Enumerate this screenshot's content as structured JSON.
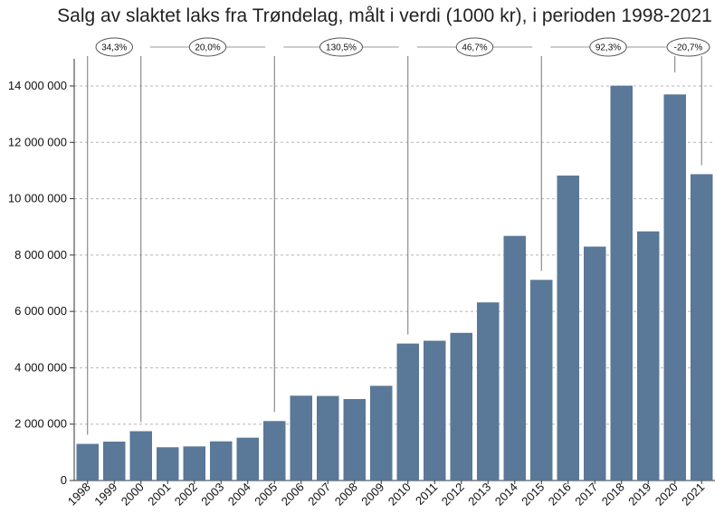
{
  "chart_data": {
    "type": "bar",
    "title": "Salg av slaktet laks fra Trøndelag, målt i verdi (1000 kr), i perioden 1998-2021",
    "xlabel": "",
    "ylabel": "",
    "ylim": [
      0,
      14000000
    ],
    "yticks": [
      0,
      2000000,
      4000000,
      6000000,
      8000000,
      10000000,
      12000000,
      14000000
    ],
    "ytick_labels": [
      "0",
      "2 000 000",
      "4 000 000",
      "6 000 000",
      "8 000 000",
      "10 000 000",
      "12 000 000",
      "14 000 000"
    ],
    "grid": "horizontal dashed",
    "bar_color": "#5a7897",
    "categories": [
      "1998",
      "1999",
      "2000",
      "2001",
      "2002",
      "2003",
      "2004",
      "2005",
      "2006",
      "2007",
      "2008",
      "2009",
      "2010",
      "2011",
      "2012",
      "2013",
      "2014",
      "2015",
      "2016",
      "2017",
      "2018",
      "2019",
      "2020",
      "2021"
    ],
    "values": [
      1300000,
      1380000,
      1750000,
      1180000,
      1210000,
      1390000,
      1520000,
      2110000,
      3010000,
      3000000,
      2890000,
      3360000,
      4860000,
      4960000,
      5240000,
      6320000,
      8680000,
      7120000,
      10820000,
      8300000,
      14010000,
      8840000,
      13700000,
      10870000
    ],
    "annotations": [
      {
        "label": "34,3%",
        "from": "1998",
        "to": "2000"
      },
      {
        "label": "20,0%",
        "from": "2000",
        "to": "2005"
      },
      {
        "label": "130,5%",
        "from": "2005",
        "to": "2010"
      },
      {
        "label": "46,7%",
        "from": "2010",
        "to": "2015"
      },
      {
        "label": "92,3%",
        "from": "2015",
        "to": "2020"
      },
      {
        "label": "-20,7%",
        "from": "2020",
        "to": "2021"
      }
    ]
  }
}
